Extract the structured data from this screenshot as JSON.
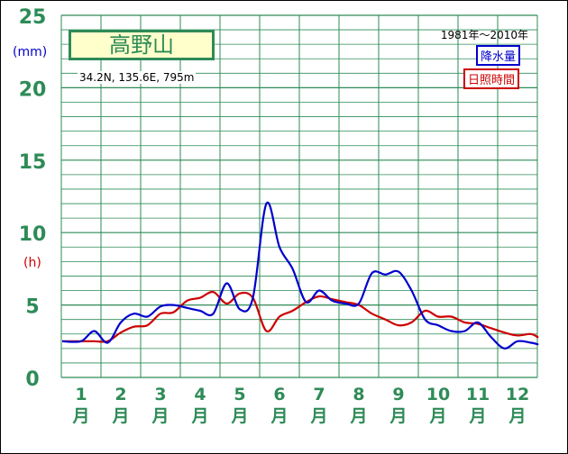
{
  "chart_data": {
    "type": "line",
    "station": "高野山",
    "coords_text": "34.2N,  135.6E,  795m",
    "period": "1981年～2010年",
    "unit_left": "(mm)",
    "unit_right": "(h)",
    "categories": [
      "1月",
      "2月",
      "3月",
      "4月",
      "5月",
      "6月",
      "7月",
      "8月",
      "9月",
      "10月",
      "11月",
      "12月"
    ],
    "yticks": [
      0,
      5,
      10,
      15,
      20,
      25
    ],
    "ylim": [
      0,
      25
    ],
    "series": [
      {
        "name": "降水量",
        "color": "#0000cc",
        "x": [
          1.0,
          1.33,
          1.67,
          2.0,
          2.33,
          2.67,
          3.0,
          3.33,
          3.67,
          4.0,
          4.33,
          4.67,
          5.0,
          5.33,
          5.67,
          6.0,
          6.33,
          6.67,
          7.0,
          7.33,
          7.67,
          8.0,
          8.33,
          8.67,
          9.0,
          9.33,
          9.67,
          10.0,
          10.33,
          10.67,
          11.0,
          11.33,
          11.67,
          12.0,
          12.33,
          12.67
        ],
        "values": [
          2.5,
          3.2,
          2.4,
          3.8,
          4.4,
          4.2,
          4.9,
          5.0,
          4.8,
          4.6,
          4.4,
          6.5,
          4.7,
          5.5,
          12.0,
          9.0,
          7.5,
          5.2,
          6.0,
          5.3,
          5.1,
          5.1,
          7.2,
          7.1,
          7.3,
          6.0,
          4.0,
          3.6,
          3.2,
          3.2,
          3.8,
          2.8,
          2.0,
          2.5,
          2.4,
          2.3
        ],
        "values_note": ""
      },
      {
        "name": "日照時間",
        "color": "#cc0000",
        "x": [
          1.0,
          1.33,
          1.67,
          2.0,
          2.33,
          2.67,
          3.0,
          3.33,
          3.67,
          4.0,
          4.33,
          4.67,
          5.0,
          5.33,
          5.67,
          6.0,
          6.33,
          6.67,
          7.0,
          7.33,
          7.67,
          8.0,
          8.33,
          8.67,
          9.0,
          9.33,
          9.67,
          10.0,
          10.33,
          10.67,
          11.0,
          11.33,
          11.67,
          12.0,
          12.33,
          12.67
        ],
        "values": [
          2.5,
          2.5,
          2.5,
          3.1,
          3.5,
          3.6,
          4.4,
          4.5,
          5.3,
          5.5,
          5.9,
          5.1,
          5.8,
          5.5,
          3.2,
          4.2,
          4.6,
          5.2,
          5.6,
          5.4,
          5.2,
          5.0,
          4.4,
          4.0,
          3.6,
          3.8,
          4.6,
          4.2,
          4.2,
          3.8,
          3.7,
          3.4,
          3.1,
          2.9,
          3.0,
          2.8
        ]
      }
    ],
    "grid": true,
    "legend_position": "top-right"
  }
}
